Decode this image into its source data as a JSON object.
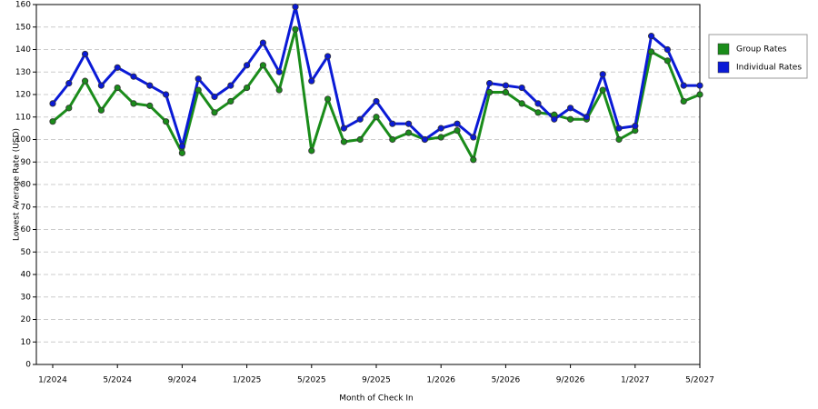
{
  "chart_data": {
    "type": "line",
    "xlabel": "Month of Check In",
    "ylabel": "Lowest Average Rate (USD)",
    "categories": [
      "1/2024",
      null,
      null,
      null,
      "5/2024",
      null,
      null,
      null,
      "9/2024",
      null,
      null,
      null,
      "1/2025",
      null,
      null,
      null,
      "5/2025",
      null,
      null,
      null,
      "9/2025",
      null,
      null,
      null,
      "1/2026",
      null,
      null,
      null,
      "5/2026",
      null,
      null,
      null,
      "9/2026",
      null,
      null,
      null,
      "1/2027",
      null,
      null,
      null,
      "5/2027"
    ],
    "series": [
      {
        "name": "Group Rates",
        "color": "#1a8c1a",
        "values": [
          108,
          114,
          126,
          113,
          123,
          116,
          115,
          108,
          94,
          122,
          112,
          117,
          123,
          133,
          122,
          149,
          95,
          118,
          99,
          100,
          110,
          100,
          103,
          100,
          101,
          104,
          91,
          121,
          121,
          116,
          112,
          111,
          109,
          109,
          122,
          100,
          104,
          139,
          135,
          117,
          120
        ]
      },
      {
        "name": "Individual Rates",
        "color": "#0a1ad6",
        "values": [
          116,
          125,
          138,
          124,
          132,
          128,
          124,
          120,
          97,
          127,
          119,
          124,
          133,
          143,
          130,
          159,
          126,
          137,
          105,
          109,
          117,
          107,
          107,
          100,
          105,
          107,
          101,
          125,
          124,
          123,
          116,
          109,
          114,
          110,
          129,
          105,
          106,
          146,
          140,
          124,
          124
        ]
      }
    ],
    "ylim": [
      0,
      160
    ],
    "yticks": [
      0,
      10,
      20,
      30,
      40,
      50,
      60,
      70,
      80,
      90,
      100,
      110,
      120,
      130,
      140,
      150,
      160
    ],
    "grid": true,
    "legend": "right"
  }
}
